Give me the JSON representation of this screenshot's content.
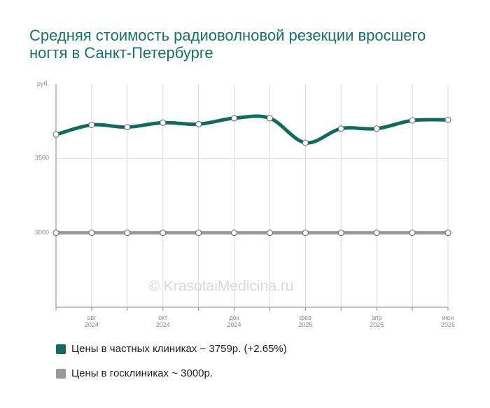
{
  "chart_data": {
    "type": "line",
    "title": "Средняя стоимость радиоволновой резекции вросшего ногтя в Санкт-Петербурге",
    "y_unit": "руб.",
    "watermark": "© KrasotaiMedicina.ru",
    "categories": [
      null,
      "авг\n2024",
      null,
      "окт\n2024",
      null,
      "дек\n2024",
      null,
      "фев\n2025",
      null,
      "апр\n2025",
      null,
      "июн\n2025"
    ],
    "series": [
      {
        "name": "Цены в частных клиниках ~ 3759р. (+2.65%)",
        "color": "#0f6b61",
        "values": [
          3660,
          3725,
          3710,
          3740,
          3730,
          3770,
          3770,
          3605,
          3700,
          3700,
          3755,
          3759
        ]
      },
      {
        "name": "Цены в госклиниках ~ 3000р.",
        "color": "#9a9a9a",
        "values": [
          3000,
          3000,
          3000,
          3000,
          3000,
          3000,
          3000,
          3000,
          3000,
          3000,
          3000,
          3000
        ]
      }
    ],
    "ylim": [
      2500,
      4000
    ],
    "yticks": [
      3000,
      3500
    ],
    "grid": true
  }
}
